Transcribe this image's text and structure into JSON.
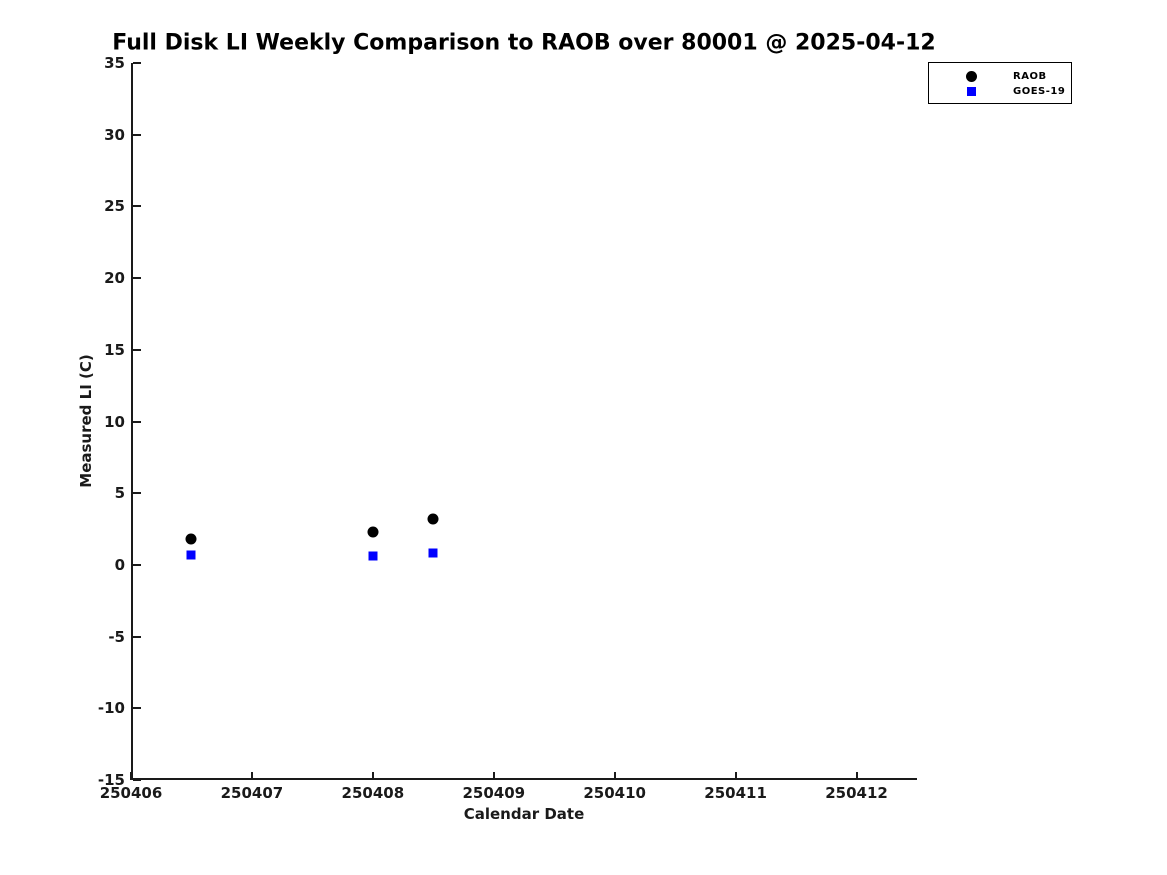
{
  "chart_data": {
    "type": "scatter",
    "title": "Full Disk LI Weekly Comparison to RAOB over 80001 @ 2025-04-12",
    "xlabel": "Calendar Date",
    "ylabel": "Measured LI (C)",
    "xlim": [
      250406,
      250412.5
    ],
    "ylim": [
      -15,
      35
    ],
    "xticks": [
      250406,
      250407,
      250408,
      250409,
      250410,
      250411,
      250412
    ],
    "yticks": [
      35,
      30,
      25,
      20,
      15,
      10,
      5,
      0,
      -5,
      -10,
      -15
    ],
    "grid": false,
    "legend_position": "outside-top-right",
    "series": [
      {
        "name": "RAOB",
        "marker": "circle",
        "color": "#000000",
        "points": [
          {
            "x": 250406.5,
            "y": 1.8
          },
          {
            "x": 250408.0,
            "y": 2.3
          },
          {
            "x": 250408.5,
            "y": 3.2
          }
        ]
      },
      {
        "name": "GOES-19",
        "marker": "square",
        "color": "#0000ff",
        "points": [
          {
            "x": 250406.5,
            "y": 0.7
          },
          {
            "x": 250408.0,
            "y": 0.6
          },
          {
            "x": 250408.5,
            "y": 0.8
          }
        ]
      }
    ]
  }
}
